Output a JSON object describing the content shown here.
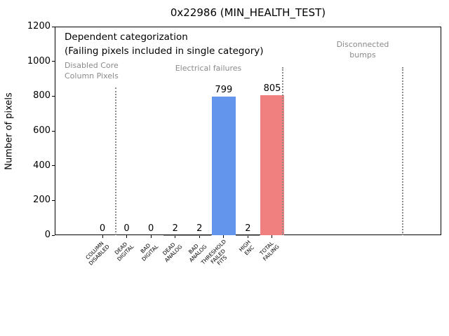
{
  "chart_data": {
    "type": "bar",
    "title": "0x22986 (MIN_HEALTH_TEST)",
    "ylabel": "Number of pixels",
    "ylim": [
      0,
      1200
    ],
    "yticks": [
      0,
      200,
      400,
      600,
      800,
      1000,
      1200
    ],
    "grid": false,
    "categories": [
      "COLUMN\nDISABLED",
      "DEAD\nDIGITAL",
      "BAD\nDIGITAL",
      "DEAD\nANALOG",
      "BAD\nANALOG",
      "THRESHOLD\nFAILED\nFITS",
      "HIGH\nENC",
      "TOTAL\nFAILING"
    ],
    "values": [
      0,
      0,
      0,
      2,
      2,
      799,
      2,
      805
    ],
    "bar_colors": [
      null,
      null,
      null,
      null,
      null,
      "#6495ed",
      null,
      "#f08080"
    ],
    "value_label_color": "#000000",
    "separator_color": "#8c8c8c",
    "separators": [
      {
        "x": 0.54,
        "ymax": 850
      },
      {
        "x": 7.43,
        "ymax": 965
      },
      {
        "x": 12.38,
        "ymax": 965
      }
    ],
    "annotations": {
      "dependent": "Dependent categorization",
      "failing_note": "(Failing pixels included in single category)",
      "disabled_core": "Disabled Core\nColumn Pixels",
      "electrical": "Electrical failures",
      "disconnected": "Disconnected\nbumps",
      "region_label_color": "#8a8a8a"
    }
  }
}
